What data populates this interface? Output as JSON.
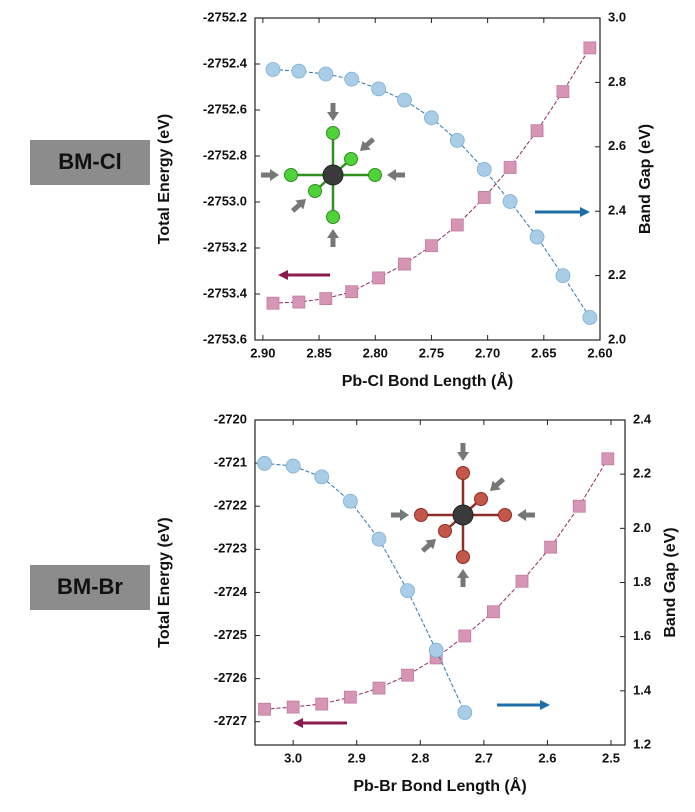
{
  "chart_data": [
    {
      "type": "line",
      "label": "BM-Cl",
      "x_label": "Pb-Cl Bond Length (Å)",
      "y_label": "Total Energy (eV)",
      "y2_label": "Band Gap (eV)",
      "x": [
        2.891,
        2.868,
        2.844,
        2.821,
        2.797,
        2.774,
        2.75,
        2.727,
        2.703,
        2.68,
        2.656,
        2.633,
        2.609
      ],
      "xlim": [
        2.907,
        2.6
      ],
      "xticks": [
        {
          "value": 2.9,
          "label": "2.90"
        },
        2.85,
        {
          "value": 2.8,
          "label": "2.80"
        },
        2.75,
        {
          "value": 2.7,
          "label": "2.70"
        },
        2.65,
        {
          "value": 2.6,
          "label": "2.60"
        }
      ],
      "ylim": [
        -2753.6,
        -2752.2
      ],
      "yticks": [
        -2753.6,
        -2753.4,
        -2753.2,
        {
          "value": -2753,
          "label": "-2753.0"
        },
        -2752.8,
        -2752.6,
        -2752.4,
        -2752.2
      ],
      "y2lim": [
        2.0,
        3.0
      ],
      "y2ticks": [
        {
          "value": 2,
          "label": "2.0"
        },
        2.2,
        2.4,
        2.6,
        2.8,
        {
          "value": 3,
          "label": "3.0"
        }
      ],
      "series": [
        {
          "marker": "square",
          "color": "#d795b6",
          "line_color": "#8e2a63",
          "values": [
            -2753.44,
            -2753.435,
            -2753.42,
            -2753.39,
            -2753.33,
            -2753.27,
            -2753.19,
            -2753.1,
            -2752.98,
            -2752.85,
            -2752.69,
            -2752.52,
            -2752.33
          ]
        },
        {
          "marker": "circle",
          "axis": "y2",
          "color": "#a9cde6",
          "line_color": "#2b78ad",
          "values": [
            2.84,
            2.835,
            2.826,
            2.81,
            2.78,
            2.745,
            2.69,
            2.62,
            2.53,
            2.43,
            2.32,
            2.2,
            2.07
          ]
        }
      ]
    },
    {
      "type": "line",
      "label": "BM-Br",
      "x_label": "Pb-Br Bond Length (Å)",
      "y_label": "Total Energy (eV)",
      "y2_label": "Band Gap (eV)",
      "x": [
        3.045,
        3.0,
        2.955,
        2.91,
        2.865,
        2.82,
        2.775,
        2.73,
        2.685,
        2.64,
        2.595,
        2.55,
        2.505
      ],
      "xlim": [
        3.06,
        2.478
      ],
      "xticks": [
        {
          "value": 3,
          "label": "3.0"
        },
        2.9,
        2.8,
        2.7,
        2.6,
        2.5
      ],
      "ylim": [
        -2727.54,
        -2720
      ],
      "yticks": [
        -2727,
        -2726,
        -2725,
        -2724,
        -2723,
        -2722,
        -2721,
        -2720
      ],
      "y2lim": [
        1.2,
        2.4
      ],
      "y2ticks": [
        1.2,
        1.4,
        1.6,
        1.8,
        {
          "value": 2,
          "label": "2.0"
        },
        2.2,
        2.4
      ],
      "series": [
        {
          "marker": "square",
          "color": "#d795b6",
          "line_color": "#8e2a63",
          "values": [
            -2726.71,
            -2726.66,
            -2726.59,
            -2726.43,
            -2726.22,
            -2725.92,
            -2725.52,
            -2725.01,
            -2724.45,
            -2723.74,
            -2722.95,
            -2722.0,
            -2720.9
          ]
        },
        {
          "marker": "circle",
          "axis": "y2",
          "color": "#a9cde6",
          "line_color": "#2b78ad",
          "values": [
            2.24,
            2.23,
            2.19,
            2.1,
            1.96,
            1.77,
            1.55,
            1.32,
            null,
            null,
            null,
            null,
            null
          ]
        }
      ]
    }
  ]
}
